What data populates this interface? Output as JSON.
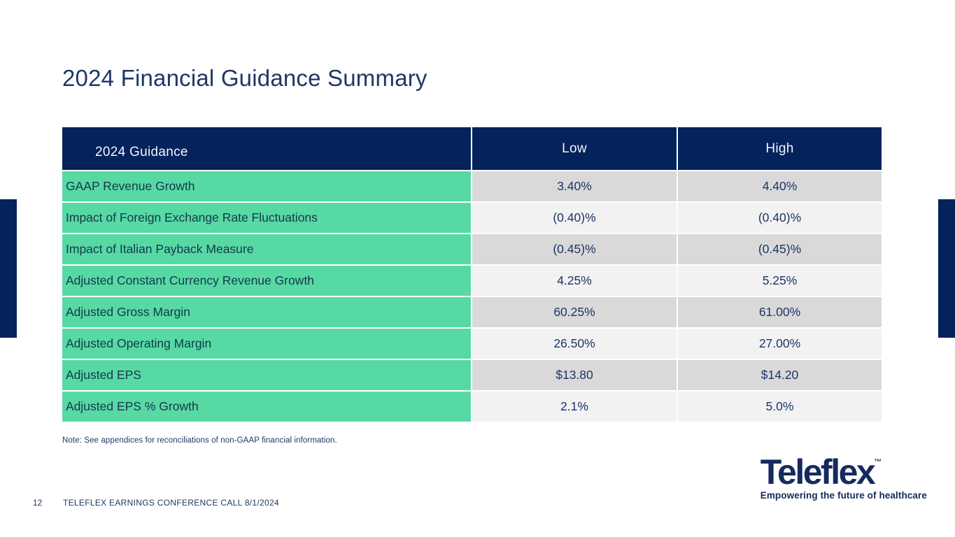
{
  "slide": {
    "title": "2024 Financial Guidance Summary",
    "note": "Note: See appendices for reconciliations of non-GAAP financial information.",
    "footer": {
      "page_number": "12",
      "text": "TELEFLEX EARNINGS CONFERENCE CALL 8/1/2024"
    },
    "logo": {
      "brand": "Teleflex",
      "trademark": "™",
      "tagline": "Empowering the future of healthcare"
    }
  },
  "table": {
    "columns": [
      "2024 Guidance",
      "Low",
      "High"
    ],
    "rows": [
      [
        "GAAP Revenue Growth",
        "3.40%",
        "4.40%"
      ],
      [
        "Impact of Foreign Exchange Rate Fluctuations",
        "(0.40)%",
        "(0.40)%"
      ],
      [
        "Impact of Italian Payback Measure",
        "(0.45)%",
        "(0.45)%"
      ],
      [
        "Adjusted Constant Currency Revenue Growth",
        "4.25%",
        "5.25%"
      ],
      [
        "Adjusted Gross Margin",
        "60.25%",
        "61.00%"
      ],
      [
        "Adjusted Operating Margin",
        "26.50%",
        "27.00%"
      ],
      [
        "Adjusted EPS",
        "$13.80",
        "$14.20"
      ],
      [
        "Adjusted EPS % Growth",
        "2.1%",
        "5.0%"
      ]
    ]
  },
  "colors": {
    "header_bg": "#04225C",
    "side_bar": "#04225C",
    "row_label_bg": "#57D9A3",
    "row_value_bg_dark": "#D9D9D9",
    "row_value_bg_light": "#F2F2F2",
    "title_text": "#1F3864",
    "header_text": "#F3F6FA",
    "label_text": "#14384F",
    "value_text": "#1C3566",
    "logo_navy": "#152A5E"
  }
}
